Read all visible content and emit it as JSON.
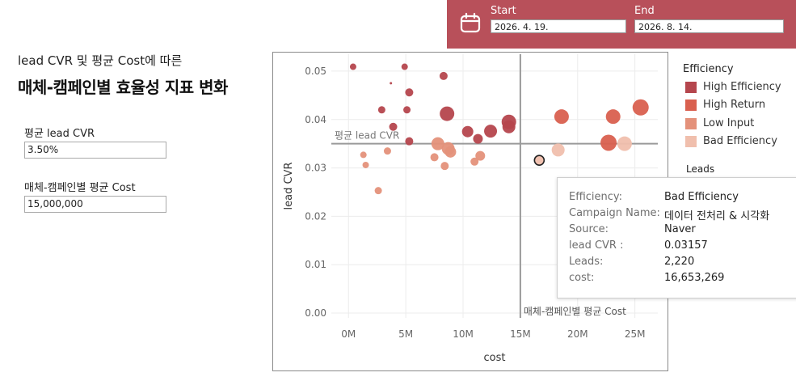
{
  "date_range": {
    "start_label": "Start",
    "start_value": "2026. 4. 19.",
    "end_label": "End",
    "end_value": "2026. 8. 14.",
    "icon": "calendar-icon"
  },
  "header": {
    "subtitle": "lead CVR 및 평균 Cost에 따른",
    "title": "매체-캠페인별 효율성 지표 변화"
  },
  "params": [
    {
      "label": "평균 lead CVR",
      "value": "3.50%"
    },
    {
      "label": "매체-캠페인별 평균 Cost",
      "value": "15,000,000"
    }
  ],
  "legend": {
    "title": "Efficiency",
    "items": [
      {
        "label": "High Efficiency",
        "color": "#b5464d"
      },
      {
        "label": "High Return",
        "color": "#d9604f"
      },
      {
        "label": "Low Input",
        "color": "#e4917a"
      },
      {
        "label": "Bad Efficiency",
        "color": "#f0bfad"
      }
    ],
    "size_title": "Leads"
  },
  "tooltip": {
    "rows": [
      {
        "key": "Efficiency:",
        "value": "Bad Efficiency"
      },
      {
        "key": "Campaign Name:",
        "value": "데이터 전처리 & 시각화"
      },
      {
        "key": "Source:",
        "value": "Naver"
      },
      {
        "key": "lead CVR :",
        "value": "0.03157"
      },
      {
        "key": "Leads:",
        "value": "2,220"
      },
      {
        "key": "cost:",
        "value": "16,653,269"
      }
    ]
  },
  "chart_data": {
    "type": "scatter",
    "xlabel": "cost",
    "ylabel": "lead CVR",
    "xlim": [
      -1500000,
      27000000
    ],
    "ylim": [
      -0.001,
      0.0535
    ],
    "xticks": [
      0,
      5000000,
      10000000,
      15000000,
      20000000,
      25000000
    ],
    "xtick_labels": [
      "0M",
      "5M",
      "10M",
      "15M",
      "20M",
      "25M"
    ],
    "yticks": [
      0,
      0.01,
      0.02,
      0.03,
      0.04,
      0.05
    ],
    "ytick_labels": [
      "0.00",
      "0.01",
      "0.02",
      "0.03",
      "0.04",
      "0.05"
    ],
    "reference_lines": [
      {
        "axis": "y",
        "value": 0.035,
        "label": "평균 lead CVR"
      },
      {
        "axis": "x",
        "value": 15000000,
        "label": "매체-캠페인별 평균 Cost"
      }
    ],
    "points": [
      {
        "x": 400000,
        "y": 0.0509,
        "category": "High Efficiency",
        "size": 4
      },
      {
        "x": 4900000,
        "y": 0.0509,
        "category": "High Efficiency",
        "size": 4
      },
      {
        "x": 8300000,
        "y": 0.049,
        "category": "High Efficiency",
        "size": 5
      },
      {
        "x": 3700000,
        "y": 0.0475,
        "category": "High Efficiency",
        "size": 1.5
      },
      {
        "x": 5300000,
        "y": 0.0456,
        "category": "High Efficiency",
        "size": 5
      },
      {
        "x": 2900000,
        "y": 0.042,
        "category": "High Efficiency",
        "size": 4.5
      },
      {
        "x": 5100000,
        "y": 0.042,
        "category": "High Efficiency",
        "size": 4.5
      },
      {
        "x": 8600000,
        "y": 0.0412,
        "category": "High Efficiency",
        "size": 9
      },
      {
        "x": 3900000,
        "y": 0.0385,
        "category": "High Efficiency",
        "size": 5
      },
      {
        "x": 10400000,
        "y": 0.0375,
        "category": "High Efficiency",
        "size": 7
      },
      {
        "x": 12400000,
        "y": 0.0376,
        "category": "High Efficiency",
        "size": 8
      },
      {
        "x": 14000000,
        "y": 0.0385,
        "category": "High Efficiency",
        "size": 8
      },
      {
        "x": 14000000,
        "y": 0.0395,
        "category": "High Efficiency",
        "size": 9
      },
      {
        "x": 11300000,
        "y": 0.036,
        "category": "High Efficiency",
        "size": 6
      },
      {
        "x": 5300000,
        "y": 0.0355,
        "category": "High Efficiency",
        "size": 5
      },
      {
        "x": 18600000,
        "y": 0.0406,
        "category": "High Return",
        "size": 9
      },
      {
        "x": 23100000,
        "y": 0.0406,
        "category": "High Return",
        "size": 9
      },
      {
        "x": 25500000,
        "y": 0.0425,
        "category": "High Return",
        "size": 10
      },
      {
        "x": 22700000,
        "y": 0.0352,
        "category": "High Return",
        "size": 10
      },
      {
        "x": 7800000,
        "y": 0.035,
        "category": "Low Input",
        "size": 8
      },
      {
        "x": 8700000,
        "y": 0.034,
        "category": "Low Input",
        "size": 8
      },
      {
        "x": 8900000,
        "y": 0.0333,
        "category": "Low Input",
        "size": 7
      },
      {
        "x": 11500000,
        "y": 0.0325,
        "category": "Low Input",
        "size": 6
      },
      {
        "x": 11000000,
        "y": 0.0313,
        "category": "Low Input",
        "size": 5
      },
      {
        "x": 7500000,
        "y": 0.0322,
        "category": "Low Input",
        "size": 5
      },
      {
        "x": 8400000,
        "y": 0.0304,
        "category": "Low Input",
        "size": 5
      },
      {
        "x": 3400000,
        "y": 0.0335,
        "category": "Low Input",
        "size": 4.5
      },
      {
        "x": 1300000,
        "y": 0.0327,
        "category": "Low Input",
        "size": 4
      },
      {
        "x": 1500000,
        "y": 0.0306,
        "category": "Low Input",
        "size": 4
      },
      {
        "x": 2600000,
        "y": 0.0253,
        "category": "Low Input",
        "size": 4.5
      },
      {
        "x": 16653269,
        "y": 0.03157,
        "category": "Bad Efficiency",
        "size": 6,
        "highlighted": true
      },
      {
        "x": 18300000,
        "y": 0.0337,
        "category": "Bad Efficiency",
        "size": 8
      },
      {
        "x": 24100000,
        "y": 0.035,
        "category": "Bad Efficiency",
        "size": 9
      }
    ]
  }
}
